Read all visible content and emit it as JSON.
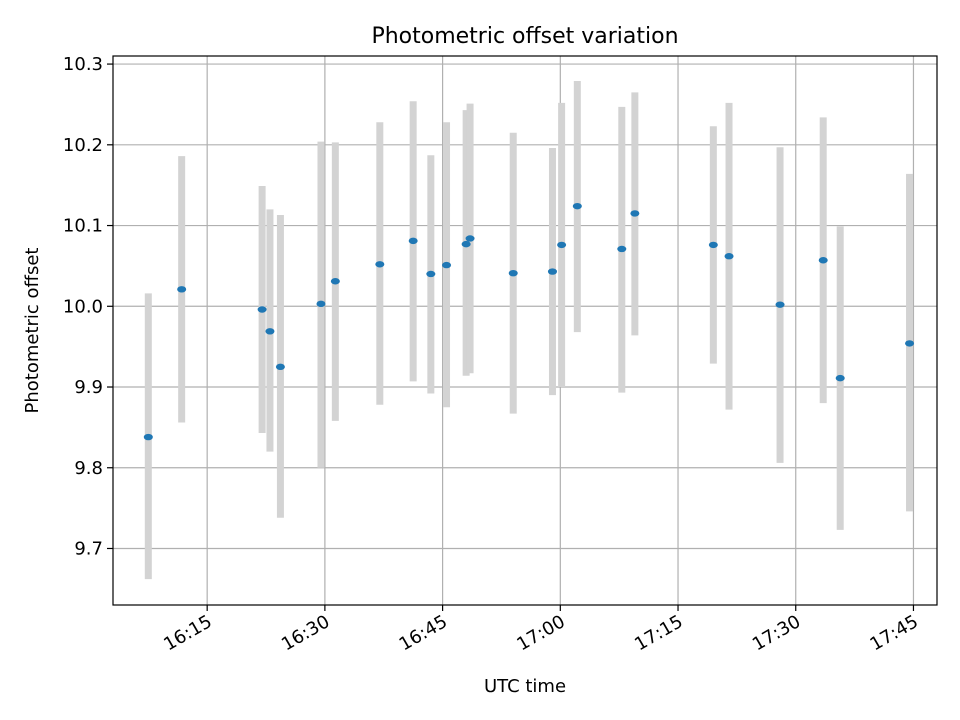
{
  "chart_data": {
    "type": "scatter",
    "title": "Photometric offset variation",
    "xlabel": "UTC time",
    "ylabel": "Photometric offset",
    "x_unit": "HH:MM UTC",
    "xlim": [
      "16:03",
      "17:48"
    ],
    "ylim": [
      9.63,
      10.31
    ],
    "x_ticks": [
      "16:15",
      "16:30",
      "16:45",
      "17:00",
      "17:15",
      "17:30",
      "17:45"
    ],
    "y_ticks": [
      "9.7",
      "9.8",
      "9.9",
      "10.0",
      "10.1",
      "10.2",
      "10.3"
    ],
    "grid": true,
    "legend": "none",
    "colors": {
      "points": "#1f77b4",
      "errorbars": "#d3d3d3",
      "grid": "#b0b0b0"
    },
    "points": [
      {
        "x": "16:07:30",
        "y": 9.838,
        "ylow": 9.662,
        "yhigh": 10.016
      },
      {
        "x": "16:11:45",
        "y": 10.021,
        "ylow": 9.856,
        "yhigh": 10.186
      },
      {
        "x": "16:22:00",
        "y": 9.996,
        "ylow": 9.843,
        "yhigh": 10.149
      },
      {
        "x": "16:23:00",
        "y": 9.969,
        "ylow": 9.82,
        "yhigh": 10.12
      },
      {
        "x": "16:24:20",
        "y": 9.925,
        "ylow": 9.738,
        "yhigh": 10.113
      },
      {
        "x": "16:29:30",
        "y": 10.003,
        "ylow": 9.8,
        "yhigh": 10.204
      },
      {
        "x": "16:31:20",
        "y": 10.031,
        "ylow": 9.858,
        "yhigh": 10.203
      },
      {
        "x": "16:37:00",
        "y": 10.052,
        "ylow": 9.878,
        "yhigh": 10.228
      },
      {
        "x": "16:41:15",
        "y": 10.081,
        "ylow": 9.907,
        "yhigh": 10.254
      },
      {
        "x": "16:43:30",
        "y": 10.04,
        "ylow": 9.892,
        "yhigh": 10.187
      },
      {
        "x": "16:45:30",
        "y": 10.051,
        "ylow": 9.875,
        "yhigh": 10.228
      },
      {
        "x": "16:48:00",
        "y": 10.077,
        "ylow": 9.914,
        "yhigh": 10.243
      },
      {
        "x": "16:48:30",
        "y": 10.084,
        "ylow": 9.917,
        "yhigh": 10.251
      },
      {
        "x": "16:54:00",
        "y": 10.041,
        "ylow": 9.867,
        "yhigh": 10.215
      },
      {
        "x": "16:59:00",
        "y": 10.043,
        "ylow": 9.89,
        "yhigh": 10.196
      },
      {
        "x": "17:00:10",
        "y": 10.076,
        "ylow": 9.9,
        "yhigh": 10.252
      },
      {
        "x": "17:02:10",
        "y": 10.124,
        "ylow": 9.968,
        "yhigh": 10.279
      },
      {
        "x": "17:07:50",
        "y": 10.071,
        "ylow": 9.893,
        "yhigh": 10.247
      },
      {
        "x": "17:09:30",
        "y": 10.115,
        "ylow": 9.964,
        "yhigh": 10.265
      },
      {
        "x": "17:19:30",
        "y": 10.076,
        "ylow": 9.929,
        "yhigh": 10.223
      },
      {
        "x": "17:21:30",
        "y": 10.062,
        "ylow": 9.872,
        "yhigh": 10.252
      },
      {
        "x": "17:28:00",
        "y": 10.002,
        "ylow": 9.806,
        "yhigh": 10.197
      },
      {
        "x": "17:33:30",
        "y": 10.057,
        "ylow": 9.88,
        "yhigh": 10.234
      },
      {
        "x": "17:35:40",
        "y": 9.911,
        "ylow": 9.723,
        "yhigh": 10.099
      },
      {
        "x": "17:44:30",
        "y": 9.954,
        "ylow": 9.746,
        "yhigh": 10.164
      }
    ]
  }
}
